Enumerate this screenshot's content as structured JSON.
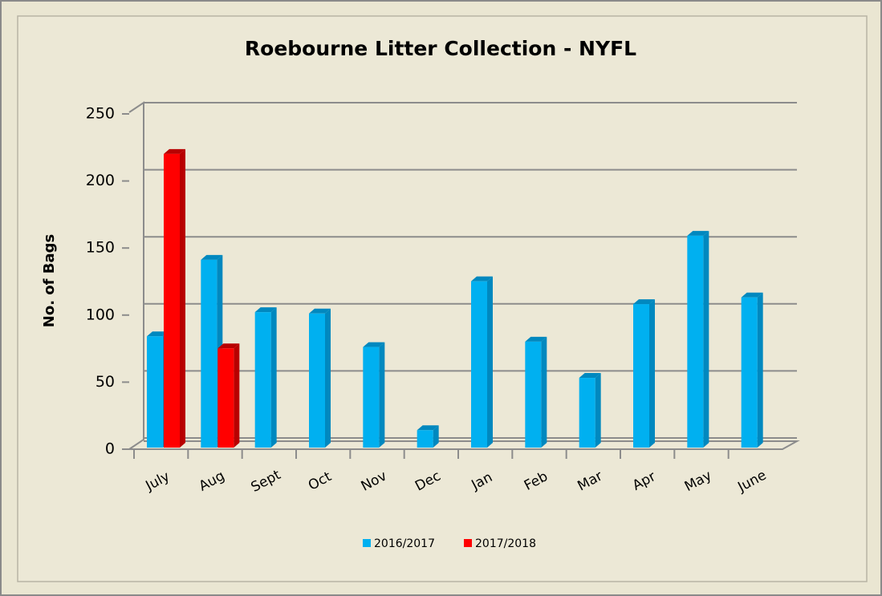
{
  "chart_data": {
    "type": "bar3d",
    "title": "Roebourne Litter Collection - NYFL",
    "y_label": "No. of Bags",
    "categories": [
      "July",
      "Aug",
      "Sept",
      "Oct",
      "Nov",
      "Dec",
      "Jan",
      "Feb",
      "Mar",
      "Apr",
      "May",
      "June"
    ],
    "series": [
      {
        "name": "2016/2017",
        "color": "#00b0f0",
        "values": [
          83,
          140,
          101,
          100,
          75,
          13,
          124,
          79,
          52,
          107,
          158,
          112
        ]
      },
      {
        "name": "2017/2018",
        "color": "#ff0000",
        "values": [
          219,
          74,
          null,
          null,
          null,
          null,
          null,
          null,
          null,
          null,
          null,
          null
        ]
      }
    ],
    "ylim": [
      0,
      250
    ],
    "yticks": [
      0,
      50,
      100,
      150,
      200,
      250
    ],
    "grid": true,
    "legend": "bottom"
  }
}
